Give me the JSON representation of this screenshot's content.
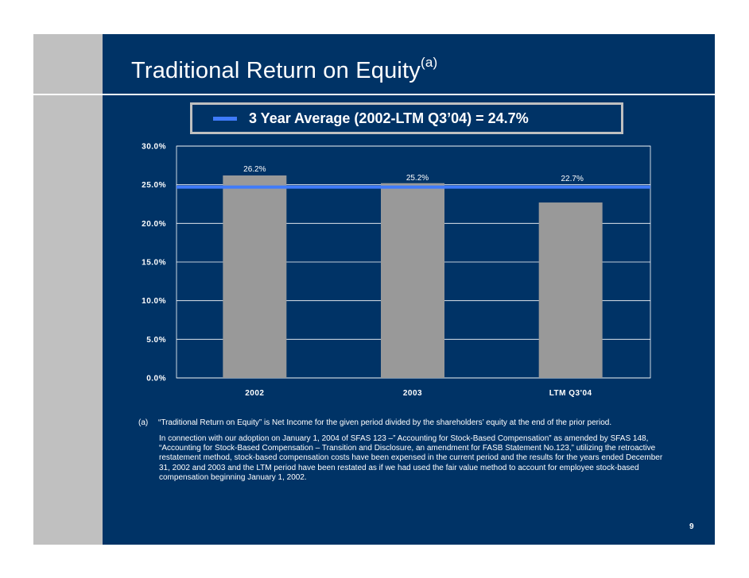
{
  "slide": {
    "title": "Traditional Return on Equity",
    "title_superscript": "(a)",
    "page_number": "9"
  },
  "colors": {
    "background": "#003366",
    "sidebar": "#c0c0c0",
    "bar": "#999999",
    "average_line": "#3f7bfa",
    "text": "#ffffff"
  },
  "chart_data": {
    "type": "bar",
    "categories": [
      "2002",
      "2003",
      "LTM Q3'04"
    ],
    "series": [
      {
        "values": [
          26.2,
          25.2,
          22.7
        ]
      }
    ],
    "data_labels": [
      "26.2%",
      "25.2%",
      "22.7%"
    ],
    "reference_line": {
      "label": "3 Year Average (2002-LTM Q3’04) = 24.7%",
      "value": 24.7
    },
    "y_ticks": [
      "0.0%",
      "5.0%",
      "10.0%",
      "15.0%",
      "20.0%",
      "25.0%",
      "30.0%"
    ],
    "ylim": [
      0,
      30
    ],
    "grid": true,
    "legend": "top"
  },
  "footnote": {
    "label": "(a)",
    "line1": "“Traditional Return on Equity” is Net Income for the given period divided by the shareholders’ equity at the end of the prior period.",
    "paragraph": "In connection with our adoption on January 1, 2004 of SFAS 123 –” Accounting for Stock-Based Compensation” as amended by SFAS 148, “Accounting for Stock-Based Compensation – Transition and Disclosure, an amendment for FASB Statement No.123,” utilizing the retroactive restatement method, stock-based compensation costs have been expensed in the current period and the results for the years ended December 31, 2002 and 2003 and the LTM period have been restated as if we had used the fair value method to account for employee stock-based compensation beginning January 1, 2002."
  }
}
